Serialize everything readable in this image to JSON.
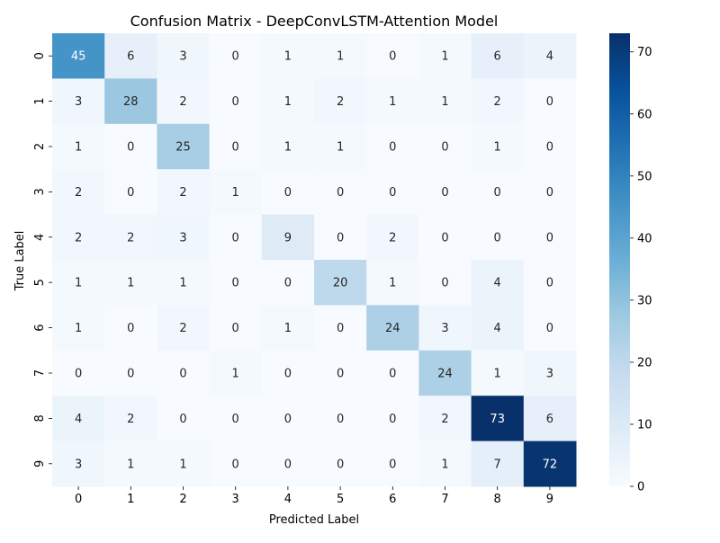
{
  "chart_data": {
    "type": "heatmap",
    "title": "Confusion Matrix - DeepConvLSTM-Attention Model",
    "xlabel": "Predicted Label",
    "ylabel": "True Label",
    "x_categories": [
      "0",
      "1",
      "2",
      "3",
      "4",
      "5",
      "6",
      "7",
      "8",
      "9"
    ],
    "y_categories": [
      "0",
      "1",
      "2",
      "3",
      "4",
      "5",
      "6",
      "7",
      "8",
      "9"
    ],
    "values": [
      [
        45,
        6,
        3,
        0,
        1,
        1,
        0,
        1,
        6,
        4
      ],
      [
        3,
        28,
        2,
        0,
        1,
        2,
        1,
        1,
        2,
        0
      ],
      [
        1,
        0,
        25,
        0,
        1,
        1,
        0,
        0,
        1,
        0
      ],
      [
        2,
        0,
        2,
        1,
        0,
        0,
        0,
        0,
        0,
        0
      ],
      [
        2,
        2,
        3,
        0,
        9,
        0,
        2,
        0,
        0,
        0
      ],
      [
        1,
        1,
        1,
        0,
        0,
        20,
        1,
        0,
        4,
        0
      ],
      [
        1,
        0,
        2,
        0,
        1,
        0,
        24,
        3,
        4,
        0
      ],
      [
        0,
        0,
        0,
        1,
        0,
        0,
        0,
        24,
        1,
        3
      ],
      [
        4,
        2,
        0,
        0,
        0,
        0,
        0,
        2,
        73,
        6
      ],
      [
        3,
        1,
        1,
        0,
        0,
        0,
        0,
        1,
        7,
        72
      ]
    ],
    "colorbar": {
      "range": [
        0,
        73
      ],
      "ticks": [
        0,
        10,
        20,
        30,
        40,
        50,
        60,
        70
      ]
    },
    "colormap": "Blues",
    "colormap_stops": [
      "#f7fbff",
      "#deebf7",
      "#c6dbef",
      "#9ecae1",
      "#6baed6",
      "#4292c6",
      "#2171b5",
      "#08519c",
      "#08306b"
    ],
    "annotation_threshold_fraction": 0.5
  }
}
